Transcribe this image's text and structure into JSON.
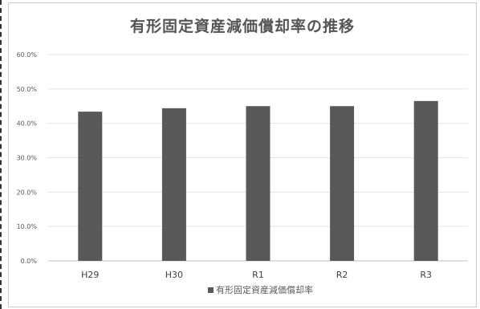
{
  "chart_data": {
    "type": "bar",
    "title": "有形固定資産減価償却率の推移",
    "categories": [
      "H29",
      "H30",
      "R1",
      "R2",
      "R3"
    ],
    "series": [
      {
        "name": "有形固定資産減価償却率",
        "values": [
          43.4,
          44.4,
          45.0,
          45.0,
          46.5
        ]
      }
    ],
    "y_ticks": [
      "0.0%",
      "10.0%",
      "20.0%",
      "30.0%",
      "40.0%",
      "50.0%",
      "60.0%"
    ],
    "ylim": [
      0,
      60
    ],
    "grid": true,
    "legend_position": "bottom",
    "bar_color": "#595959"
  }
}
